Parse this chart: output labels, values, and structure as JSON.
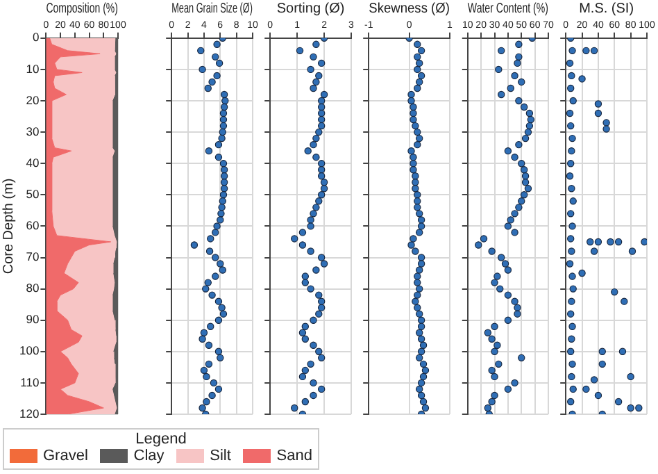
{
  "chart_data": [
    {
      "type": "area",
      "orientation": "horizontal",
      "stacked": true,
      "xlabel": "Composition (%)",
      "ylabel": "Core Depth (m)",
      "xlim": [
        0,
        100
      ],
      "xticks": [
        0,
        20,
        40,
        60,
        80,
        100
      ],
      "ylim": [
        120,
        0
      ],
      "yticks": [
        0,
        10,
        20,
        30,
        40,
        50,
        60,
        70,
        80,
        90,
        100,
        110,
        120
      ],
      "grid": true,
      "legend": "bottom",
      "legend_title": "Legend",
      "x": [
        0,
        2,
        4,
        5,
        6,
        8,
        10,
        11,
        12,
        14,
        16,
        18,
        20,
        24,
        28,
        32,
        35,
        36,
        38,
        40,
        45,
        50,
        55,
        60,
        63,
        65,
        66,
        67,
        68,
        70,
        72,
        75,
        78,
        80,
        82,
        84,
        87,
        90,
        93,
        95,
        97,
        100,
        102,
        104,
        107,
        110,
        112,
        114,
        116,
        118,
        120
      ],
      "series": [
        {
          "name": "Sand",
          "color": "#f06a6a",
          "values": [
            5,
            8,
            30,
            75,
            20,
            12,
            15,
            50,
            12,
            10,
            12,
            28,
            8,
            8,
            8,
            8,
            12,
            35,
            10,
            8,
            8,
            8,
            8,
            10,
            15,
            90,
            60,
            50,
            40,
            35,
            30,
            25,
            45,
            38,
            20,
            15,
            15,
            30,
            35,
            50,
            45,
            20,
            30,
            35,
            45,
            40,
            20,
            30,
            60,
            80,
            30
          ]
        },
        {
          "name": "Silt",
          "color": "#f7c5c5",
          "values": [
            91,
            87,
            65,
            22,
            75,
            83,
            80,
            47,
            83,
            85,
            83,
            68,
            84,
            84,
            84,
            84,
            80,
            60,
            82,
            84,
            84,
            84,
            84,
            82,
            80,
            8,
            37,
            47,
            56,
            60,
            63,
            68,
            50,
            56,
            72,
            77,
            77,
            65,
            61,
            47,
            52,
            73,
            64,
            60,
            51,
            56,
            72,
            64,
            36,
            18,
            65
          ]
        },
        {
          "name": "Clay",
          "color": "#5a5a5a",
          "values": [
            4,
            5,
            5,
            3,
            5,
            5,
            5,
            3,
            5,
            5,
            5,
            4,
            8,
            8,
            8,
            8,
            8,
            5,
            8,
            8,
            8,
            8,
            8,
            8,
            5,
            2,
            3,
            3,
            4,
            5,
            7,
            7,
            5,
            6,
            8,
            8,
            8,
            5,
            4,
            3,
            3,
            7,
            6,
            5,
            4,
            4,
            8,
            6,
            4,
            2,
            5
          ]
        },
        {
          "name": "Gravel",
          "color": "#f26b3a",
          "values": [
            null,
            null,
            null,
            null,
            null,
            null,
            null,
            null,
            null,
            null,
            null,
            null,
            null,
            null,
            null,
            null,
            null,
            null,
            null,
            null,
            null,
            null,
            null,
            null,
            null,
            null,
            null,
            null,
            null,
            null,
            null,
            null,
            null,
            null,
            null,
            null,
            null,
            null,
            null,
            null,
            null,
            null,
            null,
            null,
            null,
            null,
            null,
            null,
            null,
            null,
            null
          ]
        }
      ]
    },
    {
      "type": "scatter",
      "xlabel": "Mean Grain Size (Ø)",
      "xlim": [
        0,
        10
      ],
      "xticks": [
        0,
        2,
        4,
        6,
        8,
        10
      ],
      "ylim": [
        120,
        0
      ],
      "yticks": [
        0,
        10,
        20,
        30,
        40,
        50,
        60,
        70,
        80,
        90,
        100,
        110,
        120
      ],
      "grid": true,
      "tick_labels": "x",
      "marker": "circle",
      "color": "#2f6eb5",
      "x": [
        6.3,
        5.6,
        3.6,
        5.4,
        5.9,
        3.8,
        5.6,
        5.0,
        4.5,
        6.5,
        6.6,
        6.5,
        6.4,
        6.4,
        6.4,
        6.3,
        6.2,
        5.8,
        4.6,
        5.8,
        6.4,
        6.5,
        6.5,
        6.5,
        6.5,
        6.4,
        6.3,
        6.2,
        6.1,
        6.0,
        5.6,
        5.4,
        4.8,
        2.8,
        4.7,
        5.4,
        6.0,
        6.3,
        5.4,
        4.5,
        4.2,
        5.0,
        5.8,
        6.2,
        6.4,
        5.8,
        4.8,
        4.0,
        3.8,
        4.6,
        5.8,
        6.0,
        4.6,
        4.0,
        4.3,
        5.2,
        5.8,
        5.0,
        4.3,
        3.8,
        4.2
      ],
      "values": [
        0,
        2,
        4,
        6,
        8,
        10,
        12,
        14,
        16,
        18,
        20,
        22,
        24,
        26,
        28,
        30,
        32,
        34,
        36,
        38,
        40,
        42,
        44,
        46,
        48,
        50,
        52,
        54,
        56,
        58,
        60,
        62,
        64,
        66,
        68,
        70,
        72,
        74,
        76,
        78,
        80,
        82,
        84,
        86,
        88,
        90,
        92,
        94,
        96,
        98,
        100,
        102,
        104,
        106,
        108,
        110,
        112,
        114,
        116,
        118,
        120
      ]
    },
    {
      "type": "scatter",
      "xlabel": "Sorting (Ø)",
      "xlim": [
        0,
        3
      ],
      "xticks": [
        0,
        1,
        2,
        3
      ],
      "ylim": [
        120,
        0
      ],
      "yticks": [
        0,
        10,
        20,
        30,
        40,
        50,
        60,
        70,
        80,
        90,
        100,
        110,
        120
      ],
      "grid": true,
      "tick_labels": "x",
      "marker": "circle",
      "color": "#2f6eb5",
      "x": [
        2.0,
        1.7,
        1.1,
        1.6,
        1.9,
        1.5,
        1.8,
        1.7,
        1.6,
        2.0,
        1.9,
        1.9,
        1.9,
        1.9,
        1.9,
        1.8,
        1.7,
        1.6,
        1.4,
        1.7,
        1.9,
        1.9,
        1.9,
        2.0,
        2.0,
        1.9,
        1.8,
        1.7,
        1.6,
        1.5,
        1.5,
        1.2,
        0.9,
        1.2,
        1.5,
        1.9,
        2.0,
        1.7,
        1.3,
        1.3,
        1.5,
        1.8,
        1.9,
        1.9,
        1.8,
        1.6,
        1.3,
        1.2,
        1.3,
        1.6,
        1.8,
        1.9,
        1.5,
        1.3,
        1.2,
        1.6,
        1.9,
        1.6,
        1.3,
        0.9,
        1.2
      ],
      "values": [
        0,
        2,
        4,
        6,
        8,
        10,
        12,
        14,
        16,
        18,
        20,
        22,
        24,
        26,
        28,
        30,
        32,
        34,
        36,
        38,
        40,
        42,
        44,
        46,
        48,
        50,
        52,
        54,
        56,
        58,
        60,
        62,
        64,
        66,
        68,
        70,
        72,
        74,
        76,
        78,
        80,
        82,
        84,
        86,
        88,
        90,
        92,
        94,
        96,
        98,
        100,
        102,
        104,
        106,
        108,
        110,
        112,
        114,
        116,
        118,
        120
      ]
    },
    {
      "type": "scatter",
      "xlabel": "Skewness (Ø)",
      "xlim": [
        -1,
        1
      ],
      "xticks": [
        -1,
        0,
        1
      ],
      "ylim": [
        120,
        0
      ],
      "yticks": [
        0,
        10,
        20,
        30,
        40,
        50,
        60,
        70,
        80,
        90,
        100,
        110,
        120
      ],
      "grid": true,
      "tick_labels": "x",
      "marker": "circle",
      "color": "#2f6eb5",
      "x": [
        0.0,
        0.2,
        0.3,
        0.2,
        0.25,
        0.2,
        0.3,
        0.25,
        0.2,
        0.05,
        0.05,
        0.1,
        0.1,
        0.1,
        0.15,
        0.2,
        0.25,
        0.2,
        0.05,
        0.1,
        0.1,
        0.1,
        0.15,
        0.15,
        0.15,
        0.2,
        0.2,
        0.2,
        0.25,
        0.3,
        0.3,
        0.25,
        0.1,
        0.05,
        0.15,
        0.3,
        0.3,
        0.25,
        0.2,
        0.2,
        0.25,
        0.2,
        0.15,
        0.2,
        0.25,
        0.3,
        0.3,
        0.25,
        0.3,
        0.35,
        0.3,
        0.25,
        0.35,
        0.4,
        0.35,
        0.3,
        0.25,
        0.3,
        0.35,
        0.4,
        0.3
      ],
      "values": [
        0,
        2,
        4,
        6,
        8,
        10,
        12,
        14,
        16,
        18,
        20,
        22,
        24,
        26,
        28,
        30,
        32,
        34,
        36,
        38,
        40,
        42,
        44,
        46,
        48,
        50,
        52,
        54,
        56,
        58,
        60,
        62,
        64,
        66,
        68,
        70,
        72,
        74,
        76,
        78,
        80,
        82,
        84,
        86,
        88,
        90,
        92,
        94,
        96,
        98,
        100,
        102,
        104,
        106,
        108,
        110,
        112,
        114,
        116,
        118,
        120
      ]
    },
    {
      "type": "scatter",
      "xlabel": "Water Content (%)",
      "xlim": [
        10,
        70
      ],
      "xticks": [
        10,
        20,
        30,
        40,
        50,
        60,
        70
      ],
      "ylim": [
        120,
        0
      ],
      "yticks": [
        0,
        10,
        20,
        30,
        40,
        50,
        60,
        70,
        80,
        90,
        100,
        110,
        120
      ],
      "grid": true,
      "tick_labels": "x",
      "marker": "circle",
      "color": "#2f6eb5",
      "x": [
        58,
        48,
        35,
        48,
        47,
        33,
        45,
        50,
        42,
        35,
        48,
        52,
        56,
        57,
        56,
        55,
        53,
        48,
        40,
        45,
        50,
        52,
        53,
        53,
        55,
        52,
        50,
        48,
        45,
        42,
        40,
        45,
        22,
        18,
        28,
        35,
        38,
        40,
        32,
        30,
        34,
        40,
        45,
        47,
        47,
        40,
        30,
        25,
        28,
        32,
        30,
        50,
        33,
        28,
        30,
        45,
        40,
        30,
        28,
        25,
        26
      ],
      "values": [
        0,
        2,
        4,
        6,
        8,
        10,
        12,
        14,
        16,
        18,
        20,
        22,
        24,
        26,
        28,
        30,
        32,
        34,
        36,
        38,
        40,
        42,
        44,
        46,
        48,
        50,
        52,
        54,
        56,
        58,
        60,
        62,
        64,
        66,
        68,
        70,
        72,
        74,
        76,
        78,
        80,
        82,
        84,
        86,
        88,
        90,
        92,
        94,
        96,
        98,
        100,
        102,
        104,
        106,
        108,
        110,
        112,
        114,
        116,
        118,
        120
      ]
    },
    {
      "type": "scatter",
      "xlabel": "M.S. (SI)",
      "xlim": [
        0,
        100
      ],
      "xticks": [
        0,
        20,
        40,
        60,
        80,
        100
      ],
      "ylim": [
        120,
        0
      ],
      "yticks": [
        0,
        10,
        20,
        30,
        40,
        50,
        60,
        70,
        80,
        90,
        100,
        110,
        120
      ],
      "grid": true,
      "tick_labels": "x",
      "marker": "circle",
      "color": "#2f6eb5",
      "x": [
        6,
        8,
        5,
        7,
        6,
        9,
        5,
        6,
        8,
        7,
        6,
        5,
        7,
        9,
        6,
        8,
        6,
        7,
        5,
        8,
        9,
        7,
        6,
        8,
        7,
        6,
        8,
        7,
        9,
        6,
        8,
        25,
        35,
        20,
        40,
        40,
        50,
        50,
        30,
        40,
        55,
        65,
        97,
        35,
        82,
        20,
        60,
        72,
        45,
        70,
        45,
        80,
        35,
        25,
        40,
        65,
        80,
        90,
        45
      ],
      "values": [
        0,
        4,
        8,
        12,
        16,
        20,
        24,
        28,
        32,
        36,
        40,
        44,
        48,
        52,
        56,
        60,
        64,
        68,
        72,
        76,
        80,
        84,
        88,
        92,
        96,
        100,
        104,
        108,
        112,
        116,
        120,
        4,
        4,
        13,
        21,
        24,
        27,
        29,
        65,
        65,
        65,
        65,
        65,
        68,
        68,
        75,
        81,
        84,
        100,
        100,
        104,
        108,
        109,
        112,
        114,
        116,
        118,
        118,
        120
      ]
    }
  ]
}
